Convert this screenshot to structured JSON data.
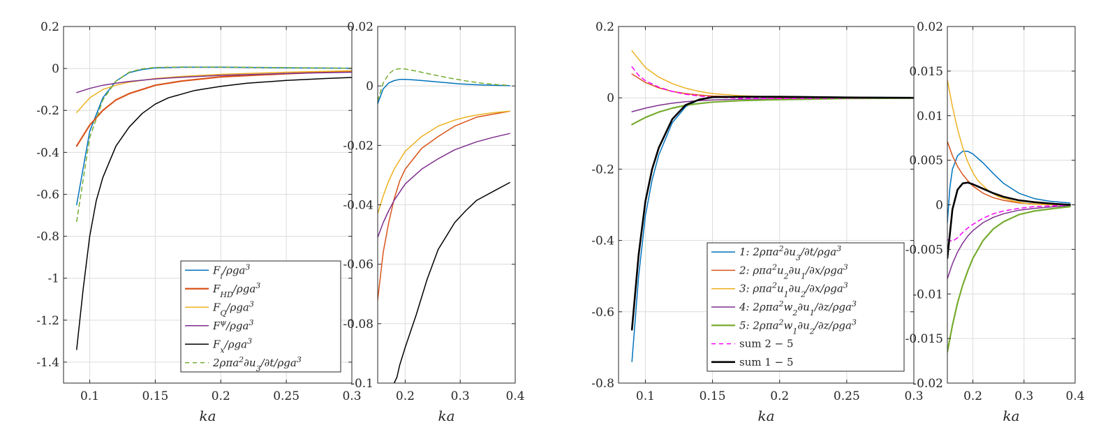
{
  "chart_data": [
    {
      "type": "line",
      "xlabel": "ka",
      "xlim": [
        0.08,
        0.3
      ],
      "ylim": [
        -1.5,
        0.2
      ],
      "xticks": [
        0.1,
        0.15,
        0.2,
        0.25,
        0.3
      ],
      "xtick_labels": [
        "0.1",
        "0.15",
        "0.2",
        "0.25",
        "0.3"
      ],
      "yticks": [
        0.2,
        0,
        -0.2,
        -0.4,
        -0.6,
        -0.8,
        -1,
        -1.2,
        -1.4
      ],
      "ytick_labels": [
        "0.2",
        "0",
        "-0.2",
        "-0.4",
        "-0.6",
        "-0.8",
        "-1",
        "-1.2",
        "-1.4"
      ],
      "grid": true,
      "legend": "bottom-right",
      "series": [
        {
          "name": "F_i/ρga^3",
          "legend_key": "Fi",
          "color": "#0072BD",
          "width": 1.5,
          "dash": "",
          "x": [
            0.09,
            0.1,
            0.11,
            0.12,
            0.13,
            0.14,
            0.15,
            0.17,
            0.2,
            0.25,
            0.3
          ],
          "y": [
            -0.65,
            -0.3,
            -0.14,
            -0.06,
            -0.02,
            -0.005,
            0.003,
            0.006,
            0.006,
            0.003,
            0.001
          ]
        },
        {
          "name": "F_HD/ρga^3",
          "legend_key": "FHD",
          "color": "#D95319",
          "width": 2.2,
          "dash": "",
          "x": [
            0.09,
            0.1,
            0.11,
            0.12,
            0.13,
            0.15,
            0.17,
            0.2,
            0.25,
            0.3
          ],
          "y": [
            -0.37,
            -0.27,
            -0.2,
            -0.15,
            -0.12,
            -0.08,
            -0.06,
            -0.04,
            -0.025,
            -0.012
          ]
        },
        {
          "name": "F_Q/ρga^3",
          "legend_key": "FQ",
          "color": "#EDB120",
          "width": 1.5,
          "dash": "",
          "x": [
            0.09,
            0.1,
            0.11,
            0.12,
            0.13,
            0.15,
            0.17,
            0.2,
            0.25,
            0.3
          ],
          "y": [
            -0.21,
            -0.14,
            -0.1,
            -0.08,
            -0.065,
            -0.048,
            -0.038,
            -0.028,
            -0.018,
            -0.011
          ]
        },
        {
          "name": "F^ψ/ρga^3",
          "legend_key": "Fpsi",
          "color": "#7E2F8E",
          "width": 1.5,
          "dash": "",
          "x": [
            0.09,
            0.1,
            0.11,
            0.12,
            0.13,
            0.15,
            0.17,
            0.2,
            0.25,
            0.3
          ],
          "y": [
            -0.115,
            -0.095,
            -0.08,
            -0.07,
            -0.062,
            -0.05,
            -0.042,
            -0.033,
            -0.024,
            -0.018
          ]
        },
        {
          "name": "F_x/ρga^3",
          "legend_key": "Fx",
          "color": "#000000",
          "width": 1.5,
          "dash": "",
          "x": [
            0.09,
            0.095,
            0.1,
            0.105,
            0.11,
            0.12,
            0.13,
            0.14,
            0.15,
            0.16,
            0.18,
            0.2,
            0.22,
            0.25,
            0.28,
            0.3
          ],
          "y": [
            -1.34,
            -1.05,
            -0.8,
            -0.63,
            -0.52,
            -0.37,
            -0.28,
            -0.215,
            -0.17,
            -0.14,
            -0.105,
            -0.085,
            -0.07,
            -0.057,
            -0.048,
            -0.043
          ]
        },
        {
          "name": "2ρπa^2∂u_3/∂t/ρga^3",
          "legend_key": "dudt",
          "color": "#77AC30",
          "width": 1.5,
          "dash": "6,5",
          "x": [
            0.09,
            0.1,
            0.11,
            0.12,
            0.13,
            0.14,
            0.15,
            0.17,
            0.2,
            0.25,
            0.3
          ],
          "y": [
            -0.73,
            -0.33,
            -0.15,
            -0.06,
            -0.018,
            -0.002,
            0.005,
            0.007,
            0.007,
            0.004,
            0.001
          ]
        }
      ]
    },
    {
      "type": "line",
      "xlabel": "ka",
      "xlim": [
        0.15,
        0.4
      ],
      "ylim": [
        -0.1,
        0.02
      ],
      "xticks": [
        0.2,
        0.3,
        0.4
      ],
      "xtick_labels": [
        "0.2",
        "0.3",
        "0.4"
      ],
      "yticks": [
        0.02,
        0,
        -0.02,
        -0.04,
        -0.06,
        -0.08,
        -0.1
      ],
      "ytick_labels": [
        "0.02",
        "0",
        "-0.02",
        "-0.04",
        "-0.06",
        "-0.08",
        "-0.1"
      ],
      "grid": true,
      "series": [
        {
          "color": "#0072BD",
          "width": 1.5,
          "dash": "",
          "x": [
            0.15,
            0.16,
            0.17,
            0.18,
            0.19,
            0.2,
            0.22,
            0.25,
            0.28,
            0.3,
            0.33,
            0.36,
            0.39
          ],
          "y": [
            -0.006,
            -0.001,
            0.001,
            0.0018,
            0.0022,
            0.0022,
            0.002,
            0.0015,
            0.001,
            0.0007,
            0.0004,
            0.0002,
            0.0001
          ]
        },
        {
          "color": "#D95319",
          "width": 1.5,
          "dash": "",
          "x": [
            0.15,
            0.16,
            0.17,
            0.18,
            0.19,
            0.2,
            0.23,
            0.26,
            0.29,
            0.31,
            0.33,
            0.36,
            0.39
          ],
          "y": [
            -0.072,
            -0.056,
            -0.046,
            -0.038,
            -0.032,
            -0.028,
            -0.021,
            -0.017,
            -0.0135,
            -0.012,
            -0.0105,
            -0.0095,
            -0.0085
          ]
        },
        {
          "color": "#EDB120",
          "width": 1.5,
          "dash": "",
          "x": [
            0.15,
            0.16,
            0.17,
            0.18,
            0.2,
            0.23,
            0.26,
            0.29,
            0.31,
            0.33,
            0.36,
            0.39
          ],
          "y": [
            -0.043,
            -0.037,
            -0.032,
            -0.028,
            -0.022,
            -0.017,
            -0.0135,
            -0.0115,
            -0.0105,
            -0.0098,
            -0.009,
            -0.0085
          ]
        },
        {
          "color": "#7E2F8E",
          "width": 1.5,
          "dash": "",
          "x": [
            0.15,
            0.16,
            0.17,
            0.18,
            0.2,
            0.23,
            0.26,
            0.29,
            0.33,
            0.36,
            0.39
          ],
          "y": [
            -0.051,
            -0.046,
            -0.042,
            -0.0385,
            -0.033,
            -0.028,
            -0.0245,
            -0.0215,
            -0.0188,
            -0.0173,
            -0.016
          ]
        },
        {
          "color": "#000000",
          "width": 1.5,
          "dash": "",
          "x": [
            0.18,
            0.185,
            0.19,
            0.2,
            0.22,
            0.24,
            0.26,
            0.29,
            0.31,
            0.33,
            0.36,
            0.39
          ],
          "y": [
            -0.1,
            -0.098,
            -0.094,
            -0.088,
            -0.077,
            -0.065,
            -0.055,
            -0.046,
            -0.042,
            -0.0385,
            -0.0355,
            -0.0325
          ]
        },
        {
          "color": "#77AC30",
          "width": 1.5,
          "dash": "6,5",
          "x": [
            0.15,
            0.16,
            0.17,
            0.18,
            0.19,
            0.2,
            0.22,
            0.25,
            0.28,
            0.31,
            0.34,
            0.37,
            0.39
          ],
          "y": [
            -0.005,
            0.001,
            0.004,
            0.0055,
            0.0058,
            0.0057,
            0.005,
            0.0038,
            0.0027,
            0.0017,
            0.0009,
            0.0004,
            0.0002
          ]
        }
      ]
    },
    {
      "type": "line",
      "xlabel": "ka",
      "xlim": [
        0.08,
        0.3
      ],
      "ylim": [
        -0.8,
        0.2
      ],
      "xticks": [
        0.1,
        0.15,
        0.2,
        0.25,
        0.3
      ],
      "xtick_labels": [
        "0.1",
        "0.15",
        "0.2",
        "0.25",
        "0.3"
      ],
      "yticks": [
        0.2,
        0,
        -0.2,
        -0.4,
        -0.6,
        -0.8
      ],
      "ytick_labels": [
        "0.2",
        "0",
        "-0.2",
        "-0.4",
        "-0.6",
        "-0.8"
      ],
      "grid": true,
      "legend": "bottom-right",
      "series": [
        {
          "name": "1: 2ρπa^2∂u_3/∂t/ρga^3",
          "legend_key": "s1",
          "color": "#0072BD",
          "width": 1.5,
          "dash": "",
          "x": [
            0.09,
            0.095,
            0.1,
            0.105,
            0.11,
            0.12,
            0.13,
            0.14,
            0.15,
            0.17,
            0.2,
            0.25,
            0.3
          ],
          "y": [
            -0.74,
            -0.5,
            -0.33,
            -0.23,
            -0.16,
            -0.07,
            -0.025,
            -0.005,
            0.002,
            0.004,
            0.004,
            0.002,
            0.001
          ]
        },
        {
          "name": "2: ρπa^2u_2∂u_1/∂x/ρga^3",
          "legend_key": "s2",
          "color": "#D95319",
          "width": 1.5,
          "dash": "",
          "x": [
            0.09,
            0.1,
            0.11,
            0.12,
            0.13,
            0.14,
            0.15,
            0.17,
            0.2,
            0.25,
            0.3
          ],
          "y": [
            0.067,
            0.043,
            0.028,
            0.018,
            0.012,
            0.008,
            0.005,
            0.003,
            0.001,
            0.0003,
            0
          ]
        },
        {
          "name": "3: ρπa^2u_1∂u_2/∂x/ρga^3",
          "legend_key": "s3",
          "color": "#EDB120",
          "width": 1.5,
          "dash": "",
          "x": [
            0.09,
            0.1,
            0.11,
            0.12,
            0.13,
            0.14,
            0.15,
            0.17,
            0.2,
            0.25,
            0.3
          ],
          "y": [
            0.132,
            0.085,
            0.058,
            0.04,
            0.027,
            0.018,
            0.012,
            0.006,
            0.002,
            0.0005,
            0
          ]
        },
        {
          "name": "4: 2ρπa^2w_2∂u_1/∂z/ρga^3",
          "legend_key": "s4",
          "color": "#7E2F8E",
          "width": 1.5,
          "dash": "",
          "x": [
            0.09,
            0.1,
            0.11,
            0.12,
            0.13,
            0.14,
            0.15,
            0.17,
            0.2,
            0.25,
            0.3
          ],
          "y": [
            -0.039,
            -0.029,
            -0.021,
            -0.015,
            -0.011,
            -0.008,
            -0.006,
            -0.004,
            -0.002,
            -0.001,
            -0.0005
          ]
        },
        {
          "name": "5: 2ρπa^2w_1∂u_2/∂z/ρga^3",
          "legend_key": "s5",
          "color": "#77AC30",
          "width": 2.2,
          "dash": "",
          "x": [
            0.09,
            0.1,
            0.11,
            0.12,
            0.13,
            0.14,
            0.15,
            0.17,
            0.2,
            0.25,
            0.3
          ],
          "y": [
            -0.075,
            -0.055,
            -0.04,
            -0.029,
            -0.021,
            -0.016,
            -0.012,
            -0.008,
            -0.005,
            -0.002,
            -0.001
          ]
        },
        {
          "name": "sum 2 − 5",
          "legend_key": "s25",
          "color": "#FF00FF",
          "width": 1.5,
          "dash": "6,5",
          "x": [
            0.09,
            0.095,
            0.1,
            0.11,
            0.12,
            0.13,
            0.14,
            0.15,
            0.17,
            0.2,
            0.25,
            0.3
          ],
          "y": [
            0.087,
            0.063,
            0.048,
            0.03,
            0.018,
            0.01,
            0.005,
            0.002,
            -0.001,
            -0.002,
            -0.001,
            0
          ]
        },
        {
          "name": "sum 1 − 5",
          "legend_key": "s15",
          "color": "#000000",
          "width": 2.6,
          "dash": "",
          "x": [
            0.09,
            0.095,
            0.1,
            0.105,
            0.11,
            0.12,
            0.13,
            0.14,
            0.15,
            0.17,
            0.2,
            0.25,
            0.3
          ],
          "y": [
            -0.65,
            -0.44,
            -0.29,
            -0.2,
            -0.14,
            -0.06,
            -0.02,
            -0.005,
            0.002,
            0.003,
            0.003,
            0.001,
            0
          ]
        }
      ]
    },
    {
      "type": "line",
      "xlabel": "ka",
      "xlim": [
        0.15,
        0.4
      ],
      "ylim": [
        -0.02,
        0.02
      ],
      "xticks": [
        0.2,
        0.3,
        0.4
      ],
      "xtick_labels": [
        "0.2",
        "0.3",
        "0.4"
      ],
      "yticks": [
        0.02,
        0.015,
        0.01,
        0.005,
        0,
        -0.005,
        -0.01,
        -0.015,
        -0.02
      ],
      "ytick_labels": [
        "0.02",
        "0.015",
        "0.01",
        "0.005",
        "0",
        "-0.005",
        "-0.01",
        "-0.015",
        "-0.02"
      ],
      "grid": true,
      "series": [
        {
          "color": "#0072BD",
          "width": 1.5,
          "dash": "",
          "x": [
            0.15,
            0.155,
            0.16,
            0.17,
            0.18,
            0.19,
            0.2,
            0.22,
            0.24,
            0.26,
            0.29,
            0.32,
            0.35,
            0.39
          ],
          "y": [
            -0.002,
            0.002,
            0.004,
            0.0055,
            0.006,
            0.006,
            0.0057,
            0.0047,
            0.0035,
            0.0024,
            0.0013,
            0.0007,
            0.0004,
            0.0002
          ]
        },
        {
          "color": "#D95319",
          "width": 1.5,
          "dash": "",
          "x": [
            0.15,
            0.16,
            0.17,
            0.18,
            0.19,
            0.2,
            0.22,
            0.24,
            0.26,
            0.29,
            0.32,
            0.36,
            0.39
          ],
          "y": [
            0.0071,
            0.0055,
            0.0043,
            0.0034,
            0.0027,
            0.0021,
            0.0013,
            0.0008,
            0.0005,
            0.0002,
            0.0001,
            0,
            0
          ]
        },
        {
          "color": "#EDB120",
          "width": 1.5,
          "dash": "",
          "x": [
            0.15,
            0.16,
            0.17,
            0.18,
            0.19,
            0.2,
            0.21,
            0.23,
            0.25,
            0.28,
            0.31,
            0.35,
            0.39
          ],
          "y": [
            0.014,
            0.011,
            0.0085,
            0.0064,
            0.0048,
            0.0036,
            0.0027,
            0.0016,
            0.0009,
            0.0004,
            0.0001,
            0,
            0
          ]
        },
        {
          "color": "#7E2F8E",
          "width": 1.5,
          "dash": "",
          "x": [
            0.15,
            0.16,
            0.17,
            0.18,
            0.19,
            0.2,
            0.22,
            0.24,
            0.26,
            0.29,
            0.32,
            0.36,
            0.39
          ],
          "y": [
            -0.0083,
            -0.0066,
            -0.0053,
            -0.0043,
            -0.0035,
            -0.0029,
            -0.002,
            -0.0014,
            -0.001,
            -0.0006,
            -0.0004,
            -0.0002,
            -0.0001
          ]
        },
        {
          "color": "#77AC30",
          "width": 2.2,
          "dash": "",
          "x": [
            0.15,
            0.16,
            0.17,
            0.18,
            0.19,
            0.2,
            0.22,
            0.24,
            0.26,
            0.29,
            0.32,
            0.36,
            0.39
          ],
          "y": [
            -0.0165,
            -0.0135,
            -0.011,
            -0.009,
            -0.0074,
            -0.006,
            -0.004,
            -0.0027,
            -0.0019,
            -0.0011,
            -0.0007,
            -0.0004,
            -0.0002
          ]
        },
        {
          "color": "#FF00FF",
          "width": 1.5,
          "dash": "6,5",
          "x": [
            0.15,
            0.16,
            0.17,
            0.18,
            0.19,
            0.2,
            0.22,
            0.24,
            0.26,
            0.29,
            0.32,
            0.36,
            0.39
          ],
          "y": [
            -0.0039,
            -0.0041,
            -0.0037,
            -0.0031,
            -0.0026,
            -0.0022,
            -0.0015,
            -0.001,
            -0.0007,
            -0.0004,
            -0.0002,
            -0.0001,
            0
          ]
        },
        {
          "color": "#000000",
          "width": 2.6,
          "dash": "",
          "x": [
            0.15,
            0.16,
            0.17,
            0.18,
            0.19,
            0.2,
            0.22,
            0.24,
            0.26,
            0.29,
            0.32,
            0.36,
            0.39
          ],
          "y": [
            -0.006,
            -0.0005,
            0.0017,
            0.0024,
            0.0025,
            0.0023,
            0.0018,
            0.0013,
            0.0009,
            0.0005,
            0.0003,
            0.0001,
            0
          ]
        }
      ]
    }
  ]
}
